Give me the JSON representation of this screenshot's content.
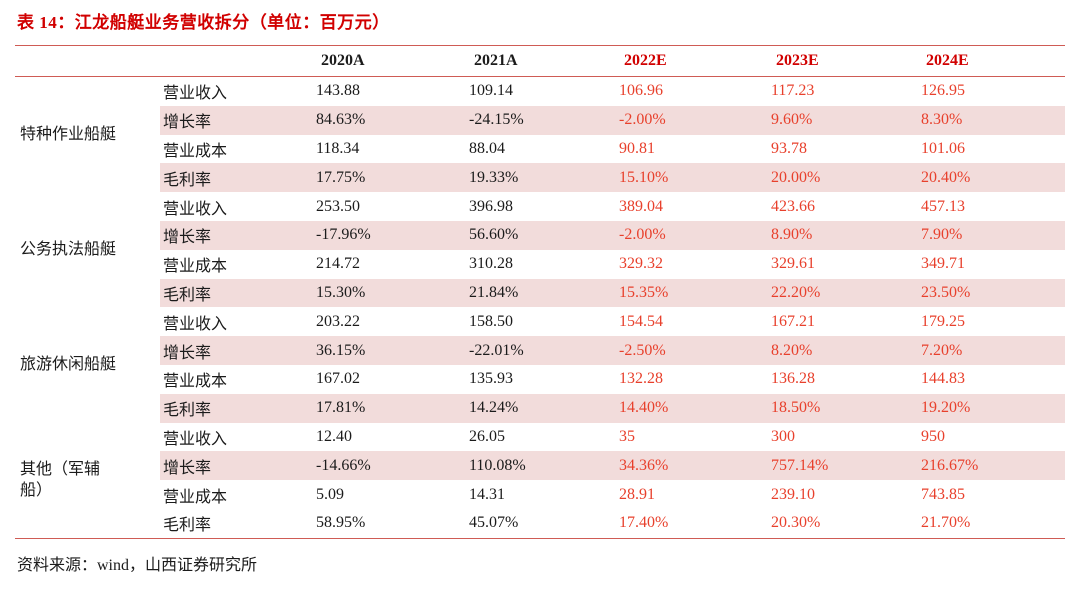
{
  "title": "表 14：江龙船艇业务营收拆分（单位：百万元）",
  "footer": "资料来源：wind，山西证券研究所",
  "colors": {
    "title_red": "#d10000",
    "header_red": "#d10000",
    "estimate_red": "#e8402c",
    "stripe_pink": "#f2dcdb",
    "rule_red": "#cf5b55",
    "text_black": "#1b1b1b"
  },
  "table": {
    "columns": [
      "2020A",
      "2021A",
      "2022E",
      "2023E",
      "2024E"
    ],
    "estimate_columns_start_index": 2,
    "groups": [
      {
        "name": "特种作业船艇",
        "rows": [
          {
            "label": "营业收入",
            "highlight": false,
            "values": [
              "143.88",
              "109.14",
              "106.96",
              "117.23",
              "126.95"
            ]
          },
          {
            "label": "增长率",
            "highlight": true,
            "values": [
              "84.63%",
              "-24.15%",
              "-2.00%",
              "9.60%",
              "8.30%"
            ]
          },
          {
            "label": "营业成本",
            "highlight": false,
            "values": [
              "118.34",
              "88.04",
              "90.81",
              "93.78",
              "101.06"
            ]
          },
          {
            "label": "毛利率",
            "highlight": true,
            "values": [
              "17.75%",
              "19.33%",
              "15.10%",
              "20.00%",
              "20.40%"
            ]
          }
        ]
      },
      {
        "name": "公务执法船艇",
        "rows": [
          {
            "label": "营业收入",
            "highlight": false,
            "values": [
              "253.50",
              "396.98",
              "389.04",
              "423.66",
              "457.13"
            ]
          },
          {
            "label": "增长率",
            "highlight": true,
            "values": [
              "-17.96%",
              "56.60%",
              "-2.00%",
              "8.90%",
              "7.90%"
            ]
          },
          {
            "label": "营业成本",
            "highlight": false,
            "values": [
              "214.72",
              "310.28",
              "329.32",
              "329.61",
              "349.71"
            ]
          },
          {
            "label": "毛利率",
            "highlight": true,
            "values": [
              "15.30%",
              "21.84%",
              "15.35%",
              "22.20%",
              "23.50%"
            ]
          }
        ]
      },
      {
        "name": "旅游休闲船艇",
        "rows": [
          {
            "label": "营业收入",
            "highlight": false,
            "values": [
              "203.22",
              "158.50",
              "154.54",
              "167.21",
              "179.25"
            ]
          },
          {
            "label": "增长率",
            "highlight": true,
            "values": [
              "36.15%",
              "-22.01%",
              "-2.50%",
              "8.20%",
              "7.20%"
            ]
          },
          {
            "label": "营业成本",
            "highlight": false,
            "values": [
              "167.02",
              "135.93",
              "132.28",
              "136.28",
              "144.83"
            ]
          },
          {
            "label": "毛利率",
            "highlight": true,
            "values": [
              "17.81%",
              "14.24%",
              "14.40%",
              "18.50%",
              "19.20%"
            ]
          }
        ]
      },
      {
        "name": "其他（军辅船）",
        "rows": [
          {
            "label": "营业收入",
            "highlight": false,
            "values": [
              "12.40",
              "26.05",
              "35",
              "300",
              "950"
            ]
          },
          {
            "label": "增长率",
            "highlight": true,
            "values": [
              "-14.66%",
              "110.08%",
              "34.36%",
              "757.14%",
              "216.67%"
            ]
          },
          {
            "label": "营业成本",
            "highlight": false,
            "values": [
              "5.09",
              "14.31",
              "28.91",
              "239.10",
              "743.85"
            ]
          },
          {
            "label": "毛利率",
            "highlight": false,
            "values": [
              "58.95%",
              "45.07%",
              "17.40%",
              "20.30%",
              "21.70%"
            ]
          }
        ]
      }
    ]
  }
}
